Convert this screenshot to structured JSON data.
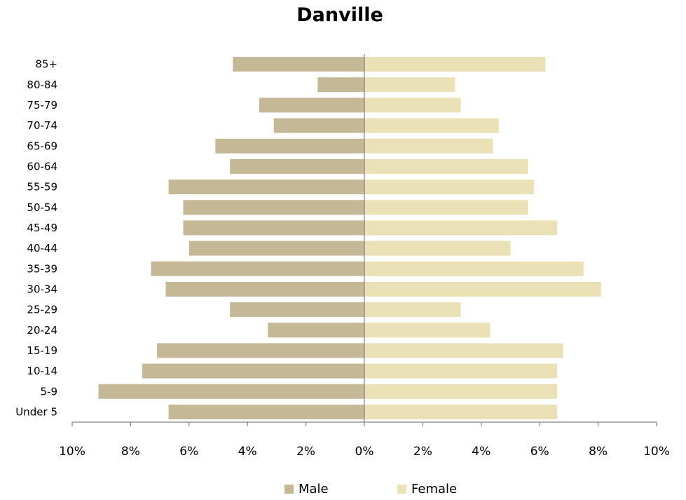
{
  "chart_data": {
    "type": "bar",
    "orientation": "horizontal",
    "layout": "population-pyramid",
    "title": "Danville",
    "categories": [
      "Under 5",
      "5-9",
      "10-14",
      "15-19",
      "20-24",
      "25-29",
      "30-34",
      "35-39",
      "40-44",
      "45-49",
      "50-54",
      "55-59",
      "60-64",
      "65-69",
      "70-74",
      "75-79",
      "80-84",
      "85+"
    ],
    "series": [
      {
        "name": "Male",
        "color": "#c4b897",
        "values": [
          6.7,
          9.1,
          7.6,
          7.1,
          3.3,
          4.6,
          6.8,
          7.3,
          6.0,
          6.2,
          6.2,
          6.7,
          4.6,
          5.1,
          3.1,
          3.6,
          1.6,
          4.5
        ]
      },
      {
        "name": "Female",
        "color": "#ebe1b6",
        "values": [
          6.6,
          6.6,
          6.6,
          6.8,
          4.3,
          3.3,
          8.1,
          7.5,
          5.0,
          6.6,
          5.6,
          5.8,
          5.6,
          4.4,
          4.6,
          3.3,
          3.1,
          6.2
        ]
      }
    ],
    "xlim": [
      -10,
      10
    ],
    "xticks": [
      -10,
      -8,
      -6,
      -4,
      -2,
      0,
      2,
      4,
      6,
      8,
      10
    ],
    "xtick_labels": [
      "10%",
      "8%",
      "6%",
      "4%",
      "2%",
      "0%",
      "2%",
      "4%",
      "6%",
      "8%",
      "10%"
    ],
    "grid": false,
    "legend_position": "bottom"
  },
  "legend": {
    "male": "Male",
    "female": "Female"
  }
}
